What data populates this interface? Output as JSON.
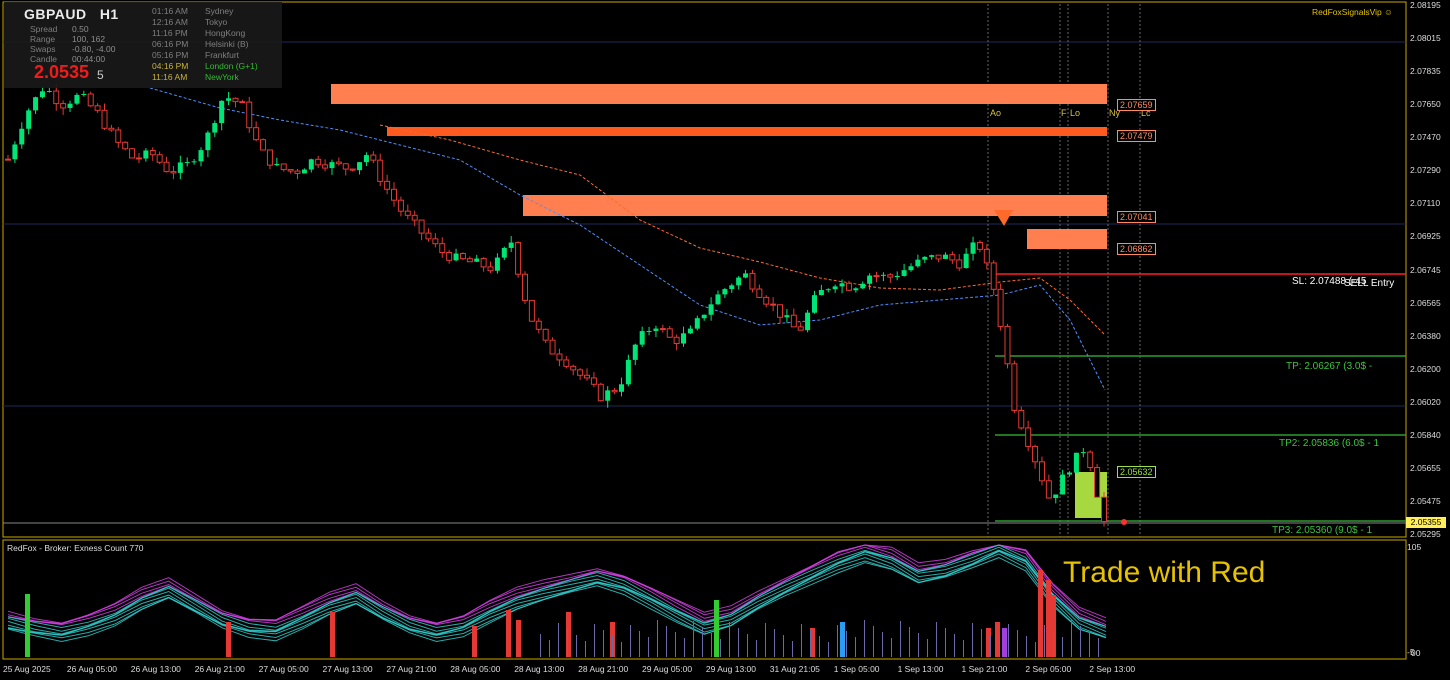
{
  "symbol": "GBPAUD",
  "timeframe": "H1",
  "info": {
    "spread_label": "Spread",
    "spread": "0.50",
    "range_label": "Range",
    "range": "100, 162",
    "swaps_label": "Swaps",
    "swaps": "-0.80, -4.00",
    "candle_label": "Candle",
    "candle": "00:44:00",
    "price_main": "2.0535",
    "price_digit": "5"
  },
  "sessions": [
    {
      "time": "01:16 AM",
      "name": "Sydney"
    },
    {
      "time": "12:16 AM",
      "name": "Tokyo"
    },
    {
      "time": "11:16 PM",
      "name": "HongKong"
    },
    {
      "time": "06:16 PM",
      "name": "Helsinki  (B)"
    },
    {
      "time": "05:16 PM",
      "name": "Frankfurt"
    },
    {
      "time": "04:16 PM",
      "name": "London  (G+1)"
    },
    {
      "time": "11:16 AM",
      "name": "NewYork"
    }
  ],
  "brand": "RedFoxSignalsVip",
  "brand_icon": "smiley-icon",
  "session_markers": [
    "Ao",
    "F",
    "Lo",
    "Ny",
    "Lc"
  ],
  "y_axis": [
    "2.08195",
    "2.08015",
    "2.07835",
    "2.07650",
    "2.07470",
    "2.07290",
    "2.07110",
    "2.06925",
    "2.06745",
    "2.06565",
    "2.06380",
    "2.06200",
    "2.06020",
    "2.05840",
    "2.05655",
    "2.05475",
    "2.05295"
  ],
  "current_price": "2.05355",
  "x_axis": [
    "25 Aug 2025",
    "26 Aug 05:00",
    "26 Aug 13:00",
    "26 Aug 21:00",
    "27 Aug 05:00",
    "27 Aug 13:00",
    "27 Aug 21:00",
    "28 Aug 05:00",
    "28 Aug 13:00",
    "28 Aug 21:00",
    "29 Aug 05:00",
    "29 Aug 13:00",
    "31 Aug 21:05",
    "1 Sep 05:00",
    "1 Sep 13:00",
    "1 Sep 21:00",
    "2 Sep 05:00",
    "2 Sep 13:00"
  ],
  "zones": {
    "z1": "2.07659",
    "z2": "2.07479",
    "z3": "2.07041",
    "z4": "2.06862",
    "z5": "2.05632"
  },
  "levels": {
    "sl": "SL: 2.07488 (-45",
    "sell_entry": "SELL Entry",
    "tp1": "TP: 2.06267 (3.0$ -",
    "tp2": "TP2: 2.05836 (6.0$ - 1",
    "tp3": "TP3: 2.05360 (9.0$ - 1"
  },
  "indicator": {
    "header": "RedFox -  Broker: Exness     Count  770",
    "axis_top": "105",
    "axis_bottom": "-5",
    "axis_bottom2": "00",
    "banner": "Trade with Red"
  },
  "colors": {
    "bull": "#00e676",
    "bear": "#e53935",
    "supply": "#ff7f50",
    "supply_dark": "#ff5a1f",
    "demand": "#a8d840",
    "sl_line": "#ff2020",
    "tp_line": "#2e9e2e",
    "grid": "#1e2a5a",
    "ma_blue": "#4a90ff",
    "ma_orange": "#ff6a2a"
  },
  "chart_data": {
    "type": "candlestick",
    "symbol": "GBPAUD",
    "timeframe": "H1",
    "ylim": [
      2.05295,
      2.08195
    ],
    "close_path": [
      2.0735,
      2.076,
      2.0775,
      2.0765,
      2.077,
      2.076,
      2.0745,
      2.0735,
      2.0738,
      2.0728,
      2.0732,
      2.0745,
      2.077,
      2.0765,
      2.074,
      2.073,
      2.0728,
      2.0735,
      2.0732,
      2.073,
      2.0738,
      2.072,
      2.0705,
      2.0695,
      2.0685,
      2.068,
      2.0678,
      2.0675,
      2.069,
      2.065,
      2.0632,
      2.0625,
      2.0615,
      2.0605,
      2.061,
      2.0635,
      2.0645,
      2.0635,
      2.064,
      2.0655,
      2.0665,
      2.0672,
      2.066,
      2.065,
      2.064,
      2.066,
      2.0668,
      2.0665,
      2.0672,
      2.067,
      2.0675,
      2.068,
      2.0682,
      2.0678,
      2.069,
      2.066,
      2.06,
      2.0575,
      2.0548,
      2.0565,
      2.0578,
      2.0536
    ]
  }
}
